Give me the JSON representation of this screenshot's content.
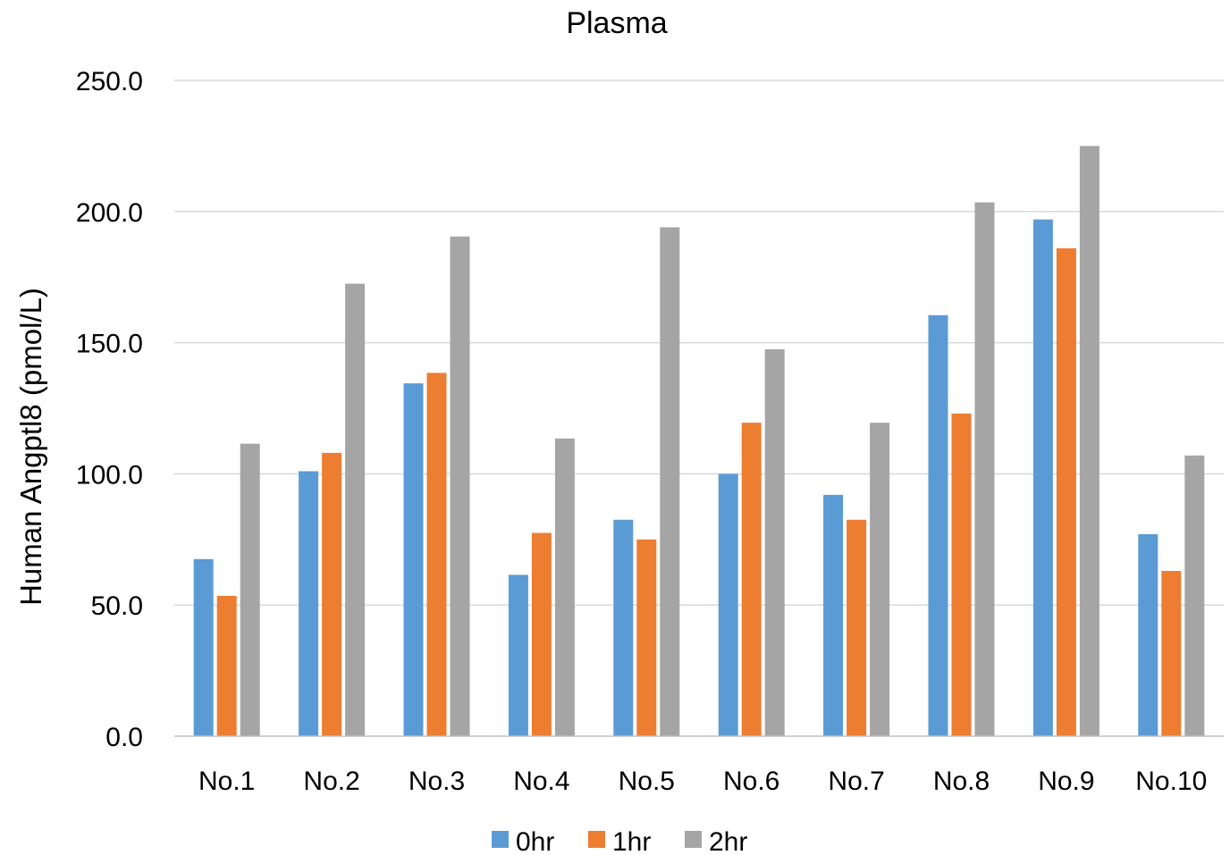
{
  "chart_data": {
    "type": "bar",
    "title": "Plasma",
    "xlabel": "",
    "ylabel": "Human Angptl8  (pmol/L)",
    "ylim": [
      0,
      250
    ],
    "yticks": [
      "0.0",
      "50.0",
      "100.0",
      "150.0",
      "200.0",
      "250.0"
    ],
    "grid": true,
    "legend_position": "bottom",
    "categories": [
      "No.1",
      "No.2",
      "No.3",
      "No.4",
      "No.5",
      "No.6",
      "No.7",
      "No.8",
      "No.9",
      "No.10"
    ],
    "series": [
      {
        "name": "0hr",
        "color": "#5b9bd5",
        "values": [
          67.5,
          101.0,
          134.5,
          61.5,
          82.5,
          100.0,
          92.0,
          160.5,
          197.0,
          77.0
        ]
      },
      {
        "name": "1hr",
        "color": "#ed7d31",
        "values": [
          53.5,
          108.0,
          138.5,
          77.5,
          75.0,
          119.5,
          82.5,
          123.0,
          186.0,
          63.0
        ]
      },
      {
        "name": "2hr",
        "color": "#a5a5a5",
        "values": [
          111.5,
          172.5,
          190.5,
          113.5,
          194.0,
          147.5,
          119.5,
          203.5,
          225.0,
          107.0
        ]
      }
    ]
  }
}
